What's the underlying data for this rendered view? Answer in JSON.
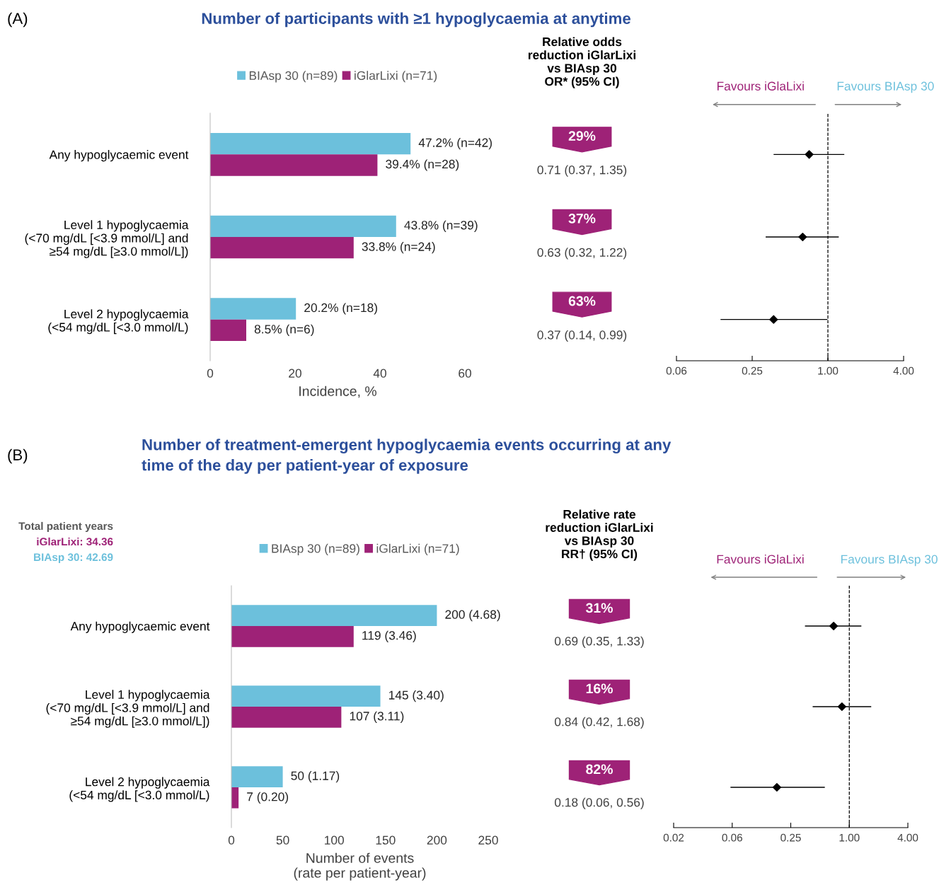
{
  "chart_data": [
    {
      "type": "bar",
      "orientation": "horizontal",
      "title": "Number of participants with ≥1 hypoglycaemia at anytime",
      "xlabel": "Incidence, %",
      "categories": [
        "Any hypoglycaemic event",
        "Level 1 hypoglycaemia\n(<70 mg/dL [<3.9 mmol/L] and\n≥54 mg/dL [≥3.0 mmol/L])",
        "Level 2 hypoglycaemia\n(<54 mg/dL [<3.0 mmol/L)"
      ],
      "series": [
        {
          "name": "BIAsp 30 (n=89)",
          "color": "#6cc0dc",
          "values": [
            47.2,
            43.8,
            20.2
          ],
          "value_labels": [
            "47.2% (n=42)",
            "43.8% (n=39)",
            "20.2% (n=18)"
          ]
        },
        {
          "name": "iGlarLixi (n=71)",
          "color": "#9e2277",
          "values": [
            39.4,
            33.8,
            8.5
          ],
          "value_labels": [
            "39.4% (n=28)",
            "33.8% (n=24)",
            "8.5% (n=6)"
          ]
        }
      ],
      "xlim": [
        0,
        60
      ],
      "xticks": [
        0,
        20,
        40,
        60
      ],
      "legend": "top",
      "grid": false,
      "annotations": [
        "(A)"
      ]
    },
    {
      "type": "other",
      "title": "Relative odds\nreduction iGlarLixi\nvs BIAsp 30\nOR* (95% CI)",
      "annotations": [
        "29%",
        "0.71 (0.37, 1.35)",
        "37%",
        "0.63 (0.32, 1.22)",
        "63%",
        "0.37 (0.14, 0.99)"
      ]
    },
    {
      "type": "scatter",
      "orientation": "horizontal",
      "categories": [
        null,
        null,
        null
      ],
      "log": "x",
      "series": [
        {
          "color": "#000000",
          "values": [
            0.71,
            0.63,
            0.37
          ],
          "errors": [
            [
              0.37,
              1.35
            ],
            [
              0.32,
              1.22
            ],
            [
              0.14,
              0.99
            ]
          ]
        }
      ],
      "marker": "diamond",
      "xlim": [
        0.0625,
        4
      ],
      "xticks": [
        {
          "value": 0.0625,
          "label": "0.06"
        },
        {
          "value": 0.25,
          "label": "0.25"
        },
        {
          "value": 1,
          "label": "1.00"
        },
        {
          "value": 4,
          "label": "4.00"
        }
      ],
      "ref_lines": [
        {
          "axis": "x",
          "value": 1,
          "line_style": "dashed",
          "color": "#000000"
        }
      ],
      "tick_labels": "x",
      "grid": false,
      "annotations": [
        "Favours iGlaLixi",
        "Favours BIAsp 30"
      ]
    },
    {
      "type": "bar",
      "orientation": "horizontal",
      "title": "Number of treatment-emergent hypoglycaemia events occurring at any\ntime of the day per patient-year of exposure",
      "xlabel": "Number of events\n(rate per patient-year)",
      "categories": [
        "Any hypoglycaemic event",
        "Level 1 hypoglycaemia\n(<70 mg/dL [<3.9 mmol/L] and\n≥54 mg/dL [≥3.0 mmol/L])",
        "Level 2 hypoglycaemia\n(<54 mg/dL [<3.0 mmol/L)"
      ],
      "series": [
        {
          "name": "BIAsp 30 (n=89)",
          "color": "#6cc0dc",
          "values": [
            200,
            145,
            50
          ],
          "value_labels": [
            "200 (4.68)",
            "145 (3.40)",
            "50 (1.17)"
          ]
        },
        {
          "name": "iGlarLixi (n=71)",
          "color": "#9e2277",
          "values": [
            119,
            107,
            7
          ],
          "value_labels": [
            "119 (3.46)",
            "107 (3.11)",
            "7 (0.20)"
          ]
        }
      ],
      "xlim": [
        0,
        250
      ],
      "xticks": [
        0,
        50,
        100,
        150,
        200,
        250
      ],
      "legend": "top",
      "grid": false,
      "annotations": [
        "(B)",
        "Total patient years",
        "iGlarLixi: 34.36",
        "BIAsp 30: 42.69"
      ]
    },
    {
      "type": "other",
      "title": "Relative rate\nreduction iGlarLixi\nvs BIAsp 30\nRR† (95% CI)",
      "annotations": [
        "31%",
        "0.69 (0.35, 1.33)",
        "16%",
        "0.84 (0.42, 1.68)",
        "82%",
        "0.18 (0.06, 0.56)"
      ]
    },
    {
      "type": "scatter",
      "orientation": "horizontal",
      "categories": [
        null,
        null,
        null
      ],
      "log": "x",
      "series": [
        {
          "color": "#000000",
          "values": [
            0.69,
            0.84,
            0.18
          ],
          "errors": [
            [
              0.35,
              1.33
            ],
            [
              0.42,
              1.68
            ],
            [
              0.06,
              0.56
            ]
          ]
        }
      ],
      "marker": "diamond",
      "xlim": [
        0.015625,
        4
      ],
      "xticks": [
        {
          "value": 0.015625,
          "label": "0.02"
        },
        {
          "value": 0.0625,
          "label": "0.06"
        },
        {
          "value": 0.25,
          "label": "0.25"
        },
        {
          "value": 1,
          "label": "1.00"
        },
        {
          "value": 4,
          "label": "4.00"
        }
      ],
      "ref_lines": [
        {
          "axis": "x",
          "value": 1,
          "line_style": "dashed",
          "color": "#000000"
        }
      ],
      "tick_labels": "x",
      "grid": false,
      "annotations": [
        "Favours iGlaLixi",
        "Favours BIAsp 30"
      ]
    }
  ]
}
